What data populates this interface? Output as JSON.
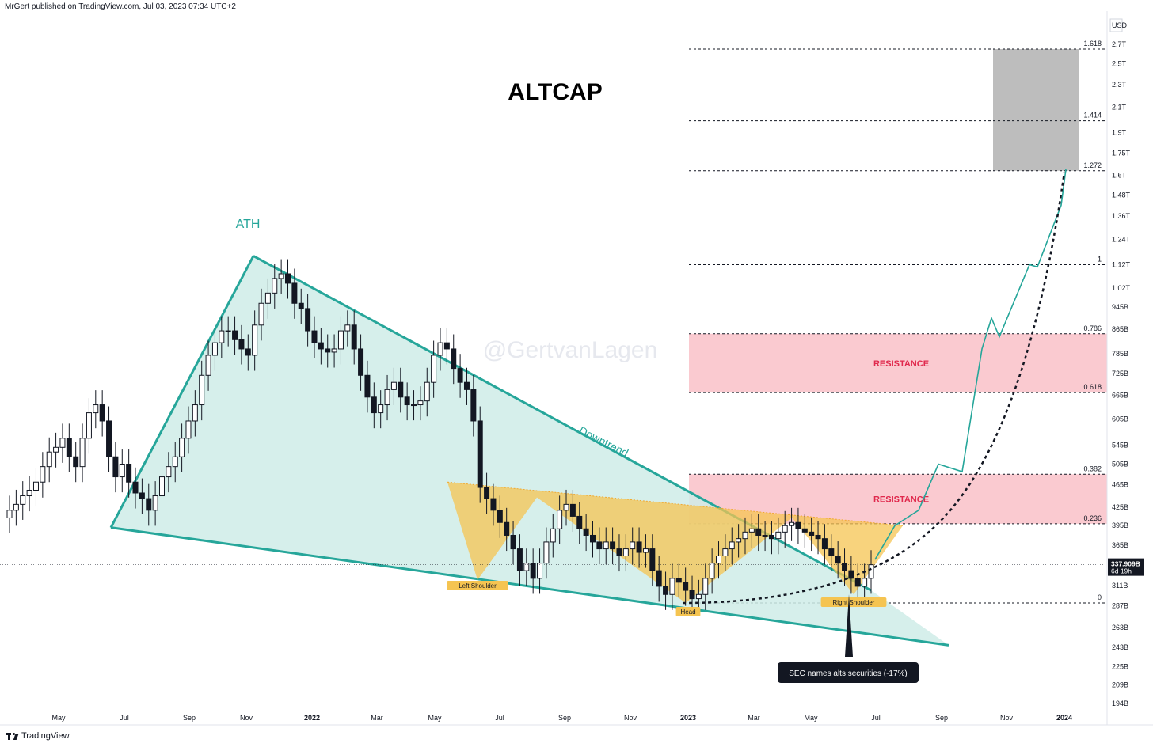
{
  "header": {
    "publisher_line": "MrGert published on TradingView.com, Jul 03, 2023 07:34 UTC+2"
  },
  "footer": {
    "brand": "TradingView"
  },
  "watermark": "@GertvanLagen",
  "colors": {
    "teal": "#26a69a",
    "teal_fill": "#cfece8",
    "orange_fill": "#f5c451",
    "resistance_fill": "#f9c4cb",
    "resistance_text": "#e0294d",
    "target_box": "#bdbdbd",
    "candle_up": "#ffffff",
    "candle_down": "#131722"
  },
  "chart_data": {
    "type": "candlestick",
    "symbol_title": "ALTCAP",
    "currency": "USD",
    "yscale": "log",
    "x_ticks": [
      "May",
      "Jul",
      "Sep",
      "Nov",
      "2022",
      "Mar",
      "May",
      "Jul",
      "Sep",
      "Nov",
      "2023",
      "Mar",
      "May",
      "Jul",
      "Sep",
      "Nov",
      "2024"
    ],
    "y_ticks": [
      {
        "label": "2.7T",
        "v": 2700
      },
      {
        "label": "2.5T",
        "v": 2500
      },
      {
        "label": "2.3T",
        "v": 2300
      },
      {
        "label": "2.1T",
        "v": 2100
      },
      {
        "label": "1.9T",
        "v": 1900
      },
      {
        "label": "1.75T",
        "v": 1750
      },
      {
        "label": "1.6T",
        "v": 1600
      },
      {
        "label": "1.48T",
        "v": 1480
      },
      {
        "label": "1.36T",
        "v": 1360
      },
      {
        "label": "1.24T",
        "v": 1240
      },
      {
        "label": "1.12T",
        "v": 1120
      },
      {
        "label": "1.02T",
        "v": 1020
      },
      {
        "label": "945B",
        "v": 945
      },
      {
        "label": "865B",
        "v": 865
      },
      {
        "label": "785B",
        "v": 785
      },
      {
        "label": "725B",
        "v": 725
      },
      {
        "label": "665B",
        "v": 665
      },
      {
        "label": "605B",
        "v": 605
      },
      {
        "label": "545B",
        "v": 545
      },
      {
        "label": "505B",
        "v": 505
      },
      {
        "label": "465B",
        "v": 465
      },
      {
        "label": "425B",
        "v": 425
      },
      {
        "label": "395B",
        "v": 395
      },
      {
        "label": "365B",
        "v": 365
      },
      {
        "label": "311B",
        "v": 311
      },
      {
        "label": "287B",
        "v": 287
      },
      {
        "label": "263B",
        "v": 263
      },
      {
        "label": "243B",
        "v": 243
      },
      {
        "label": "225B",
        "v": 225
      },
      {
        "label": "209B",
        "v": 209
      },
      {
        "label": "194B",
        "v": 194
      }
    ],
    "last_price": {
      "label": "337.909B",
      "countdown": "6d 19h",
      "v": 337.9
    },
    "fib_levels": [
      {
        "label": "1.618",
        "v": 2650
      },
      {
        "label": "1.414",
        "v": 1990
      },
      {
        "label": "1.272",
        "v": 1630
      },
      {
        "label": "1",
        "v": 1120
      },
      {
        "label": "0.786",
        "v": 850
      },
      {
        "label": "0.618",
        "v": 672
      },
      {
        "label": "0.382",
        "v": 485
      },
      {
        "label": "0.236",
        "v": 398
      },
      {
        "label": "0",
        "v": 290
      }
    ],
    "zones": [
      {
        "label": "RESISTANCE",
        "from": 672,
        "to": 850
      },
      {
        "label": "RESISTANCE",
        "from": 398,
        "to": 485
      }
    ],
    "target_zone": {
      "from": 1630,
      "to": 2650
    },
    "annotations": {
      "ath": "ATH",
      "downtrend": "Downtrend",
      "left_shoulder": "Left Shoulder",
      "head": "Head",
      "right_shoulder": "Right Shoulder",
      "event": "SEC names alts securities (-17%)"
    },
    "weekly_closes": [
      420,
      430,
      445,
      455,
      470,
      500,
      530,
      540,
      560,
      520,
      500,
      560,
      620,
      640,
      600,
      520,
      480,
      505,
      470,
      450,
      440,
      420,
      445,
      480,
      500,
      520,
      560,
      600,
      640,
      720,
      780,
      820,
      860,
      860,
      830,
      800,
      780,
      880,
      960,
      1000,
      1060,
      1080,
      1040,
      960,
      940,
      860,
      820,
      800,
      790,
      800,
      860,
      880,
      800,
      720,
      660,
      620,
      640,
      680,
      700,
      660,
      640,
      640,
      650,
      700,
      780,
      820,
      800,
      740,
      700,
      680,
      600,
      460,
      440,
      420,
      400,
      380,
      360,
      330,
      340,
      320,
      340,
      370,
      390,
      420,
      430,
      410,
      390,
      380,
      370,
      360,
      370,
      360,
      350,
      360,
      370,
      355,
      360,
      330,
      310,
      300,
      320,
      315,
      305,
      295,
      300,
      320,
      340,
      350,
      360,
      370,
      375,
      385,
      390,
      380,
      380,
      375,
      385,
      395,
      400,
      390,
      385,
      380,
      375,
      360,
      350,
      340,
      330,
      320,
      310,
      320,
      337.9
    ]
  }
}
